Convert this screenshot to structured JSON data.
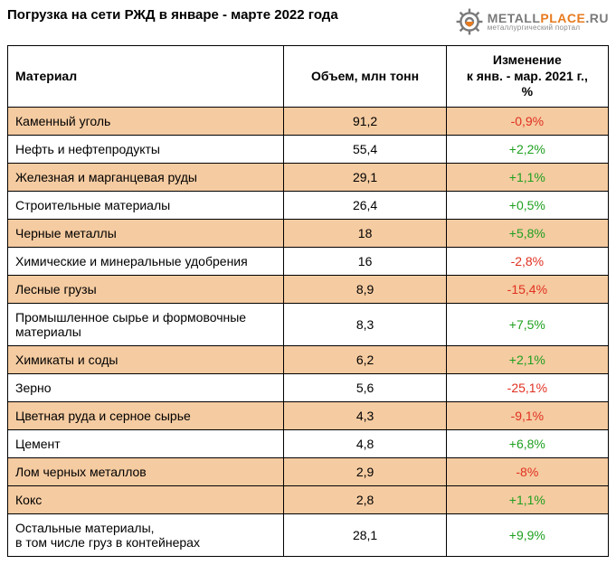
{
  "title": "Погрузка на сети РЖД в январе - марте 2022 года",
  "logo": {
    "main_gray": "METALL",
    "main_orange": "PLACE",
    "main_suffix": ".RU",
    "sub": "металлургический портал",
    "gray": "#7a7a7a",
    "orange": "#e77b1f"
  },
  "colors": {
    "row_alt_bg": "#f5cba1",
    "border": "#000000",
    "positive": "#1fa01f",
    "negative": "#e03020",
    "text": "#000000"
  },
  "table": {
    "headers": {
      "material": "Материал",
      "volume": "Объем, млн тонн",
      "change": "Изменение\nк янв. - мар. 2021 г.,\n%"
    },
    "rows": [
      {
        "material": "Каменный уголь",
        "volume": "91,2",
        "change": "-0,9%",
        "dir": "neg",
        "alt": true
      },
      {
        "material": "Нефть и нефтепродукты",
        "volume": "55,4",
        "change": "+2,2%",
        "dir": "pos",
        "alt": false
      },
      {
        "material": "Железная и марганцевая руды",
        "volume": "29,1",
        "change": "+1,1%",
        "dir": "pos",
        "alt": true
      },
      {
        "material": "Строительные материалы",
        "volume": "26,4",
        "change": "+0,5%",
        "dir": "pos",
        "alt": false
      },
      {
        "material": "Черные металлы",
        "volume": "18",
        "change": "+5,8%",
        "dir": "pos",
        "alt": true
      },
      {
        "material": "Химические и минеральные удобрения",
        "volume": "16",
        "change": "-2,8%",
        "dir": "neg",
        "alt": false
      },
      {
        "material": "Лесные грузы",
        "volume": "8,9",
        "change": "-15,4%",
        "dir": "neg",
        "alt": true
      },
      {
        "material": "Промышленное сырье и формовочные материалы",
        "volume": "8,3",
        "change": "+7,5%",
        "dir": "pos",
        "alt": false
      },
      {
        "material": "Химикаты и соды",
        "volume": "6,2",
        "change": "+2,1%",
        "dir": "pos",
        "alt": true
      },
      {
        "material": "Зерно",
        "volume": "5,6",
        "change": "-25,1%",
        "dir": "neg",
        "alt": false
      },
      {
        "material": "Цветная руда и серное сырье",
        "volume": "4,3",
        "change": "-9,1%",
        "dir": "neg",
        "alt": true
      },
      {
        "material": "Цемент",
        "volume": "4,8",
        "change": "+6,8%",
        "dir": "pos",
        "alt": false
      },
      {
        "material": "Лом черных металлов",
        "volume": "2,9",
        "change": "-8%",
        "dir": "neg",
        "alt": true
      },
      {
        "material": "Кокс",
        "volume": "2,8",
        "change": "+1,1%",
        "dir": "pos",
        "alt": true
      },
      {
        "material": "Остальные материалы,\nв том числе груз в контейнерах",
        "volume": "28,1",
        "change": "+9,9%",
        "dir": "pos",
        "alt": false
      }
    ]
  }
}
